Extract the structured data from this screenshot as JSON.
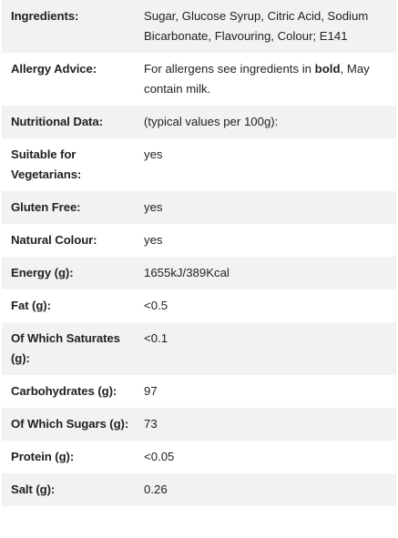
{
  "rows": [
    {
      "label": "Ingredients:",
      "value": "Sugar, Glucose Syrup, Citric Acid, Sodium Bicarbonate, Flavouring, Colour; E141"
    },
    {
      "label": "Allergy Advice:",
      "value_parts": [
        "For allergens see ingredients in ",
        "bold",
        ", May contain milk."
      ]
    },
    {
      "label": "Nutritional Data:",
      "value": "(typical values per 100g):"
    },
    {
      "label": "Suitable for Vegetarians:",
      "value": "yes"
    },
    {
      "label": "Gluten Free:",
      "value": "yes"
    },
    {
      "label": "Natural Colour:",
      "value": "yes"
    },
    {
      "label": "Energy (g):",
      "value": "1655kJ/389Kcal"
    },
    {
      "label": "Fat (g):",
      "value": "<0.5"
    },
    {
      "label": "Of Which Saturates (g):",
      "value": "<0.1"
    },
    {
      "label": "Carbohydrates (g):",
      "value": "97"
    },
    {
      "label": "Of Which Sugars (g):",
      "value": "73"
    },
    {
      "label": "Protein (g):",
      "value": "<0.05"
    },
    {
      "label": "Salt (g):",
      "value": "0.26"
    }
  ]
}
